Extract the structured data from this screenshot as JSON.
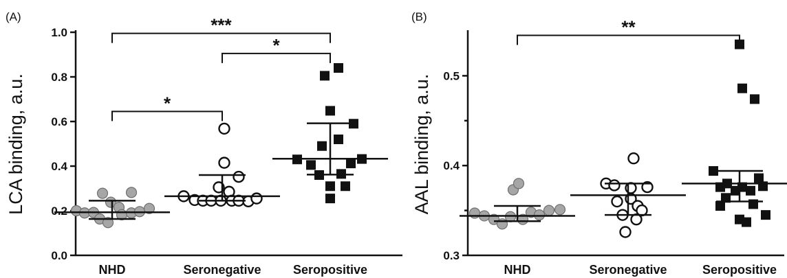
{
  "chart_data": [
    {
      "panel_label": "(A)",
      "type": "scatter",
      "ylabel": "LCA binding, a.u.",
      "ylim": [
        0,
        1.0
      ],
      "yticks": [
        "0.0",
        "0.2",
        "0.4",
        "0.6",
        "0.8",
        "1.0"
      ],
      "categories": [
        "NHD",
        "Seronegative",
        "Seropositive"
      ],
      "groups": [
        {
          "category": "NHD",
          "marker": "gray-circle",
          "points": [
            {
              "offset": -52,
              "y": 0.2
            },
            {
              "offset": -40,
              "y": 0.19
            },
            {
              "offset": -27,
              "y": 0.192
            },
            {
              "offset": -18,
              "y": 0.163
            },
            {
              "offset": -6,
              "y": 0.147
            },
            {
              "offset": -14,
              "y": 0.278
            },
            {
              "offset": -2,
              "y": 0.238
            },
            {
              "offset": 10,
              "y": 0.215
            },
            {
              "offset": 14,
              "y": 0.182
            },
            {
              "offset": 28,
              "y": 0.282
            },
            {
              "offset": 28,
              "y": 0.19
            },
            {
              "offset": 40,
              "y": 0.196
            },
            {
              "offset": 54,
              "y": 0.21
            }
          ],
          "median": 0.193,
          "q1": 0.163,
          "q3": 0.245
        },
        {
          "category": "Seronegative",
          "marker": "open-circle",
          "points": [
            {
              "offset": -56,
              "y": 0.265
            },
            {
              "offset": -40,
              "y": 0.248
            },
            {
              "offset": -28,
              "y": 0.245
            },
            {
              "offset": -16,
              "y": 0.245
            },
            {
              "offset": -5,
              "y": 0.305
            },
            {
              "offset": -2,
              "y": 0.245
            },
            {
              "offset": 10,
              "y": 0.285
            },
            {
              "offset": 14,
              "y": 0.245
            },
            {
              "offset": 3,
              "y": 0.415
            },
            {
              "offset": 24,
              "y": 0.352
            },
            {
              "offset": 24,
              "y": 0.245
            },
            {
              "offset": 38,
              "y": 0.242
            },
            {
              "offset": 50,
              "y": 0.255
            },
            {
              "offset": 3,
              "y": 0.568
            }
          ],
          "median": 0.265,
          "q1": 0.245,
          "q3": 0.36
        },
        {
          "category": "Seropositive",
          "marker": "black-square",
          "points": [
            {
              "offset": -48,
              "y": 0.43
            },
            {
              "offset": -28,
              "y": 0.405
            },
            {
              "offset": -16,
              "y": 0.36
            },
            {
              "offset": -12,
              "y": 0.49
            },
            {
              "offset": -8,
              "y": 0.805
            },
            {
              "offset": 0,
              "y": 0.648
            },
            {
              "offset": 0,
              "y": 0.31
            },
            {
              "offset": 0,
              "y": 0.255
            },
            {
              "offset": 12,
              "y": 0.84
            },
            {
              "offset": 12,
              "y": 0.52
            },
            {
              "offset": 16,
              "y": 0.365
            },
            {
              "offset": 22,
              "y": 0.31
            },
            {
              "offset": 30,
              "y": 0.412
            },
            {
              "offset": 34,
              "y": 0.59
            },
            {
              "offset": 46,
              "y": 0.432
            }
          ],
          "median": 0.433,
          "q1": 0.362,
          "q3": 0.592
        }
      ],
      "significance": [
        {
          "from": 0,
          "to": 2,
          "label": "***",
          "y": 0.995
        },
        {
          "from": 1,
          "to": 2,
          "label": "*",
          "y": 0.905
        },
        {
          "from": 0,
          "to": 1,
          "label": "*",
          "y": 0.645
        }
      ]
    },
    {
      "panel_label": "(B)",
      "type": "scatter",
      "ylabel": "AAL binding, a.u.",
      "ylim": [
        0.3,
        0.55
      ],
      "yticks": [
        "0.3",
        "0.4",
        "0.5"
      ],
      "categories": [
        "NHD",
        "Seronegative",
        "Seropositive"
      ],
      "groups": [
        {
          "category": "NHD",
          "marker": "gray-circle",
          "points": [
            {
              "offset": -62,
              "y": 0.347
            },
            {
              "offset": -48,
              "y": 0.344
            },
            {
              "offset": -34,
              "y": 0.34
            },
            {
              "offset": -22,
              "y": 0.335
            },
            {
              "offset": -10,
              "y": 0.343
            },
            {
              "offset": -6,
              "y": 0.373
            },
            {
              "offset": 2,
              "y": 0.38
            },
            {
              "offset": 8,
              "y": 0.34
            },
            {
              "offset": 20,
              "y": 0.348
            },
            {
              "offset": 32,
              "y": 0.345
            },
            {
              "offset": 46,
              "y": 0.35
            },
            {
              "offset": 62,
              "y": 0.351
            }
          ],
          "median": 0.344,
          "q1": 0.338,
          "q3": 0.355
        },
        {
          "category": "Seronegative",
          "marker": "open-circle",
          "points": [
            {
              "offset": -32,
              "y": 0.38
            },
            {
              "offset": -20,
              "y": 0.378
            },
            {
              "offset": -16,
              "y": 0.36
            },
            {
              "offset": -8,
              "y": 0.345
            },
            {
              "offset": -4,
              "y": 0.326
            },
            {
              "offset": 4,
              "y": 0.375
            },
            {
              "offset": 4,
              "y": 0.363
            },
            {
              "offset": 8,
              "y": 0.408
            },
            {
              "offset": 12,
              "y": 0.34
            },
            {
              "offset": 14,
              "y": 0.355
            },
            {
              "offset": 20,
              "y": 0.35
            },
            {
              "offset": 28,
              "y": 0.376
            }
          ],
          "median": 0.367,
          "q1": 0.345,
          "q3": 0.38
        },
        {
          "category": "Seropositive",
          "marker": "black-square",
          "points": [
            {
              "offset": -38,
              "y": 0.394
            },
            {
              "offset": -28,
              "y": 0.376
            },
            {
              "offset": -18,
              "y": 0.38
            },
            {
              "offset": -6,
              "y": 0.372
            },
            {
              "offset": 4,
              "y": 0.376
            },
            {
              "offset": -28,
              "y": 0.355
            },
            {
              "offset": -20,
              "y": 0.364
            },
            {
              "offset": 0,
              "y": 0.34
            },
            {
              "offset": 16,
              "y": 0.372
            },
            {
              "offset": 28,
              "y": 0.386
            },
            {
              "offset": 34,
              "y": 0.377
            },
            {
              "offset": 20,
              "y": 0.357
            },
            {
              "offset": 4,
              "y": 0.486
            },
            {
              "offset": 22,
              "y": 0.474
            },
            {
              "offset": 0,
              "y": 0.535
            },
            {
              "offset": 38,
              "y": 0.345
            },
            {
              "offset": 10,
              "y": 0.337
            }
          ],
          "median": 0.38,
          "q1": 0.36,
          "q3": 0.394
        }
      ],
      "significance": [
        {
          "from": 0,
          "to": 2,
          "label": "**",
          "y": 0.545
        }
      ]
    }
  ]
}
